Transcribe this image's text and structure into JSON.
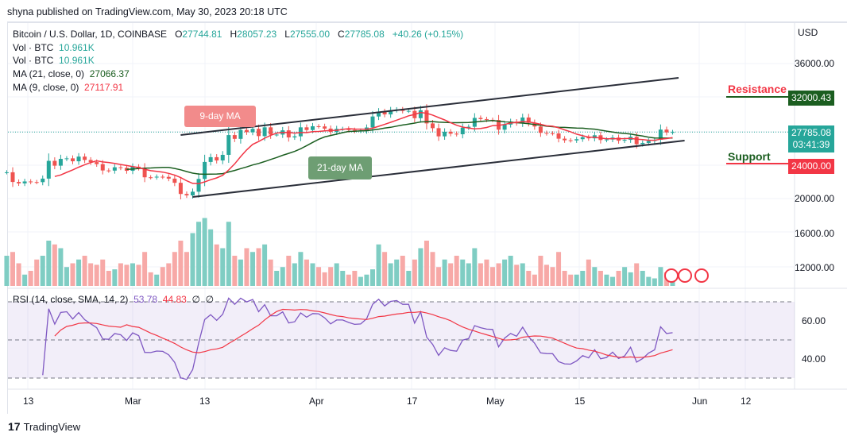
{
  "header": {
    "published": "shyna published on TradingView.com, May 30, 2023 20:18 UTC"
  },
  "legend": {
    "symbol": "Bitcoin / U.S. Dollar, 1D, COINBASE",
    "o_label": "O",
    "o": "27744.81",
    "h_label": "H",
    "h": "28057.23",
    "l_label": "L",
    "l": "27555.00",
    "c_label": "C",
    "c": "27785.08",
    "change": "+40.26 (+0.15%)",
    "vol1_label": "Vol · BTC",
    "vol1": "10.961K",
    "vol2_label": "Vol · BTC",
    "vol2": "10.961K",
    "ma21_label": "MA (21, close, 0)",
    "ma21": "27066.37",
    "ma9_label": "MA (9, close, 0)",
    "ma9": "27117.91"
  },
  "rsi_legend": {
    "label": "RSI (14, close, SMA, 14, 2)",
    "rsi": "53.78",
    "sma": "44.83",
    "z1": "∅",
    "z2": "∅"
  },
  "price_axis": {
    "currency": "USD",
    "ticks": [
      "36000.00",
      "20000.00",
      "16000.00",
      "12000.00"
    ],
    "resistance_tag": "32000.43",
    "last_price": "27785.08",
    "countdown": "03:41:39",
    "support_tag": "24000.00"
  },
  "rsi_axis": {
    "ticks": [
      "60.00",
      "40.00"
    ]
  },
  "time_axis": {
    "ticks": [
      "13",
      "Mar",
      "13",
      "Apr",
      "17",
      "May",
      "15",
      "Jun",
      "12"
    ]
  },
  "annotations": {
    "resistance": "Resistance",
    "support": "Support",
    "ma9_label": "9-day MA",
    "ma21_label": "21-day MA"
  },
  "colors": {
    "up": "#26a69a",
    "down": "#ef5350",
    "ma9": "#f23645",
    "ma21": "#1b5e20",
    "rsi": "#7e57c2",
    "resistance": "#1b5e20",
    "support": "#f23645"
  },
  "footer": {
    "brand": "TradingView"
  },
  "chart_data": {
    "type": "candlestick",
    "start_date": "2023-02-08",
    "closes": [
      22960,
      21800,
      21630,
      21860,
      21790,
      21780,
      22200,
      24330,
      23750,
      24570,
      24630,
      24280,
      24840,
      24440,
      24180,
      23940,
      23180,
      23160,
      23560,
      23490,
      23140,
      23630,
      23470,
      22360,
      22350,
      22430,
      22410,
      22200,
      21700,
      20360,
      20190,
      20630,
      22160,
      24200,
      24770,
      24380,
      25050,
      27420,
      26970,
      28040,
      27770,
      28170,
      27300,
      28350,
      27480,
      27480,
      27990,
      27140,
      27270,
      28350,
      28030,
      28480,
      28460,
      28200,
      27800,
      28170,
      28170,
      28030,
      27920,
      27950,
      28330,
      29650,
      30230,
      29900,
      30400,
      30490,
      30320,
      30320,
      29450,
      30400,
      28820,
      28250,
      27270,
      27820,
      27590,
      27520,
      28310,
      28420,
      29480,
      29340,
      29250,
      29230,
      28070,
      28680,
      29030,
      28850,
      29530,
      28900,
      28450,
      27690,
      27630,
      27620,
      26990,
      26800,
      26780,
      26930,
      27170,
      27030,
      27400,
      26830,
      26890,
      27120,
      26750,
      26850,
      27220,
      26330,
      26480,
      26720,
      26860,
      28080,
      27740,
      27785
    ],
    "volume_relative": [
      40,
      45,
      30,
      15,
      20,
      35,
      40,
      60,
      55,
      50,
      25,
      30,
      35,
      40,
      30,
      28,
      35,
      20,
      22,
      30,
      28,
      30,
      28,
      45,
      18,
      15,
      25,
      30,
      45,
      60,
      45,
      70,
      85,
      90,
      75,
      55,
      50,
      85,
      40,
      35,
      50,
      45,
      50,
      55,
      35,
      20,
      25,
      40,
      30,
      45,
      35,
      30,
      25,
      18,
      25,
      30,
      20,
      15,
      20,
      12,
      15,
      22,
      55,
      45,
      30,
      35,
      40,
      20,
      35,
      50,
      60,
      45,
      25,
      35,
      30,
      40,
      35,
      30,
      50,
      30,
      35,
      25,
      30,
      35,
      40,
      28,
      30,
      20,
      15,
      40,
      28,
      25,
      45,
      20,
      15,
      15,
      20,
      35,
      25,
      20,
      15,
      12,
      20,
      25,
      18,
      30,
      20,
      12,
      10,
      25,
      18,
      10
    ],
    "ylim": [
      8000,
      40000
    ],
    "trendlines": [
      {
        "from": [
          "2023-03-11",
          20000
        ],
        "to": [
          "2023-06-01",
          26760
        ]
      },
      {
        "from": [
          "2023-03-09",
          27430
        ],
        "to": [
          "2023-05-31",
          34290
        ]
      }
    ],
    "horizontal_levels": {
      "resistance": 32000.43,
      "support": 24000
    },
    "rsi_levels": [
      70,
      50,
      30
    ]
  }
}
